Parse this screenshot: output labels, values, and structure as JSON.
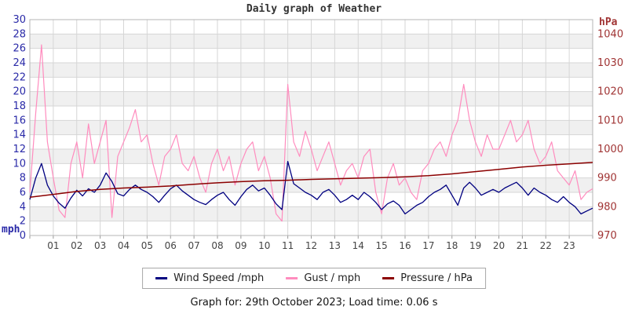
{
  "title": "Daily graph of Weather",
  "footer": {
    "text": "Graph for: 29th October 2023; Load time: 0.06 s"
  },
  "chart_data": {
    "type": "line",
    "title": "Daily graph of Weather",
    "x_axis": {
      "min_hour": 0,
      "max_hour": 24,
      "tick_labels": [
        "01",
        "02",
        "03",
        "04",
        "05",
        "06",
        "07",
        "08",
        "09",
        "10",
        "11",
        "12",
        "13",
        "14",
        "15",
        "16",
        "17",
        "18",
        "19",
        "20",
        "21",
        "22",
        "23"
      ],
      "label_color": "#444444"
    },
    "left_axis": {
      "unit": "mph",
      "min": 0,
      "max": 30,
      "tick_step": 2,
      "label_color": "#2a2aa8"
    },
    "right_axis": {
      "unit": "hPa",
      "min": 970,
      "max": 1045,
      "ticks": [
        970,
        980,
        990,
        1000,
        1010,
        1020,
        1030,
        1040
      ],
      "label_color": "#a03434"
    },
    "style": {
      "band_color": "#f0f0f0",
      "grid_color": "#d6d6d6",
      "border_color": "#b4b4b4",
      "tick_color": "#9a9a9a",
      "background": "#ffffff"
    },
    "legend_position": "bottom",
    "series": [
      {
        "name": "Gust / mph",
        "color": "#ff8cbe",
        "axis": "left",
        "width": 1.2,
        "interval_minutes": 15,
        "values": [
          6.0,
          17.0,
          26.5,
          13.0,
          8.0,
          3.5,
          2.5,
          10.0,
          13.0,
          8.0,
          15.5,
          10.0,
          13.0,
          16.0,
          2.5,
          11.0,
          13.0,
          15.0,
          17.5,
          13.0,
          14.0,
          10.0,
          7.0,
          11.0,
          12.0,
          14.0,
          10.0,
          9.0,
          11.0,
          8.0,
          6.0,
          10.0,
          12.0,
          9.0,
          11.0,
          7.0,
          10.0,
          12.0,
          13.0,
          9.0,
          11.0,
          8.0,
          3.0,
          2.0,
          21.0,
          13.0,
          11.0,
          14.5,
          12.0,
          9.0,
          11.0,
          13.0,
          10.0,
          7.0,
          9.0,
          10.0,
          8.0,
          11.0,
          12.0,
          6.0,
          3.0,
          8.0,
          10.0,
          7.0,
          8.0,
          6.0,
          5.0,
          9.0,
          10.0,
          12.0,
          13.0,
          11.0,
          14.0,
          16.0,
          21.0,
          16.0,
          13.0,
          11.0,
          14.0,
          12.0,
          12.0,
          14.0,
          16.0,
          13.0,
          14.0,
          16.0,
          12.0,
          10.0,
          11.0,
          13.0,
          9.0,
          8.0,
          7.0,
          9.0,
          5.0,
          6.0,
          6.5
        ]
      },
      {
        "name": "Wind Speed /mph",
        "color": "#000080",
        "axis": "left",
        "width": 1.3,
        "interval_minutes": 15,
        "values": [
          5.0,
          8.0,
          10.0,
          7.0,
          5.5,
          4.5,
          3.8,
          5.2,
          6.3,
          5.5,
          6.5,
          6.0,
          7.0,
          8.7,
          7.5,
          5.8,
          5.5,
          6.4,
          7.0,
          6.4,
          6.0,
          5.4,
          4.6,
          5.6,
          6.5,
          7.0,
          6.2,
          5.6,
          5.0,
          4.6,
          4.3,
          5.0,
          5.6,
          6.0,
          5.0,
          4.2,
          5.4,
          6.4,
          7.0,
          6.2,
          6.6,
          5.6,
          4.4,
          3.6,
          10.3,
          7.2,
          6.6,
          6.0,
          5.6,
          5.0,
          6.0,
          6.4,
          5.6,
          4.6,
          5.0,
          5.6,
          5.0,
          6.0,
          5.4,
          4.6,
          3.6,
          4.4,
          4.8,
          4.2,
          3.0,
          3.6,
          4.2,
          4.6,
          5.4,
          6.0,
          6.4,
          7.0,
          5.6,
          4.2,
          6.6,
          7.4,
          6.6,
          5.6,
          6.0,
          6.4,
          6.0,
          6.6,
          7.0,
          7.4,
          6.6,
          5.6,
          6.6,
          6.0,
          5.6,
          5.0,
          4.6,
          5.4,
          4.6,
          4.0,
          3.0,
          3.4,
          3.8
        ]
      },
      {
        "name": "Pressure / hPa",
        "color": "#8b0000",
        "axis": "right",
        "width": 1.5,
        "interval_minutes": 60,
        "values": [
          983.3,
          984.3,
          985.3,
          986.0,
          986.5,
          986.8,
          987.2,
          987.8,
          988.3,
          988.7,
          989.0,
          989.2,
          989.5,
          989.7,
          989.9,
          990.1,
          990.4,
          990.8,
          991.4,
          992.2,
          993.0,
          993.8,
          994.4,
          994.9,
          995.4
        ]
      }
    ]
  }
}
